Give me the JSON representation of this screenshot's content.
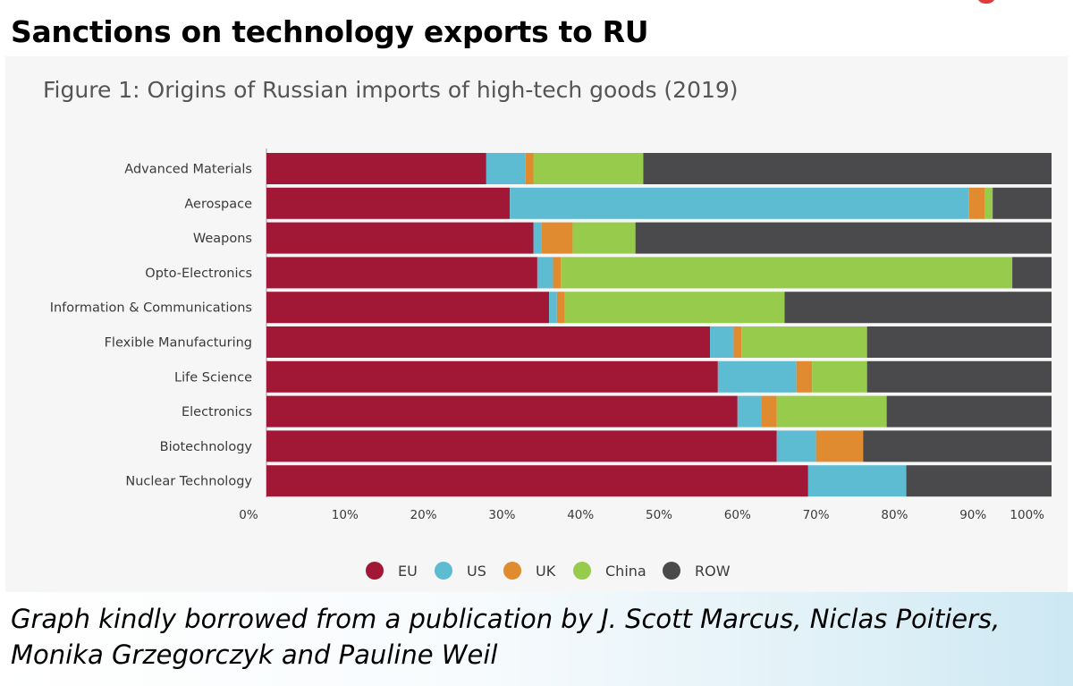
{
  "slide": {
    "title": "Sanctions on technology exports to RU",
    "caption": "Graph kindly borrowed from a publication by J. Scott Marcus, Niclas Poitiers, Monika Grzegorczyk and Pauline Weil"
  },
  "chart_data": {
    "type": "bar",
    "orientation": "horizontal",
    "stacked": true,
    "title": "Figure 1: Origins of Russian imports of high-tech goods (2019)",
    "xlabel": "",
    "ylabel": "",
    "xlim": [
      0,
      100
    ],
    "x_ticks": [
      "0%",
      "10%",
      "20%",
      "30%",
      "40%",
      "50%",
      "60%",
      "70%",
      "80%",
      "90%",
      "100%"
    ],
    "legend_position": "bottom",
    "grid": false,
    "categories": [
      "Advanced Materials",
      "Aerospace",
      "Weapons",
      "Opto-Electronics",
      "Information & Communications",
      "Flexible Manufacturing",
      "Life Science",
      "Electronics",
      "Biotechnology",
      "Nuclear Technology"
    ],
    "series": [
      {
        "name": "EU",
        "color": "#a01836",
        "values": [
          28.0,
          31.0,
          34.0,
          34.5,
          36.0,
          56.5,
          57.5,
          60.0,
          65.0,
          69.0
        ]
      },
      {
        "name": "US",
        "color": "#5ebcd2",
        "values": [
          5.0,
          58.5,
          1.0,
          2.0,
          1.0,
          3.0,
          10.0,
          3.0,
          5.0,
          12.5
        ]
      },
      {
        "name": "UK",
        "color": "#e08b2f",
        "values": [
          1.0,
          2.0,
          4.0,
          1.0,
          1.0,
          1.0,
          2.0,
          2.0,
          6.0,
          0.0
        ]
      },
      {
        "name": "China",
        "color": "#97cb4b",
        "values": [
          14.0,
          1.0,
          8.0,
          57.5,
          28.0,
          16.0,
          7.0,
          14.0,
          0.0,
          0.0
        ]
      },
      {
        "name": "ROW",
        "color": "#4a4a4c",
        "values": [
          52.0,
          7.5,
          53.0,
          5.0,
          34.0,
          23.5,
          23.5,
          21.0,
          24.0,
          18.5
        ]
      }
    ]
  }
}
